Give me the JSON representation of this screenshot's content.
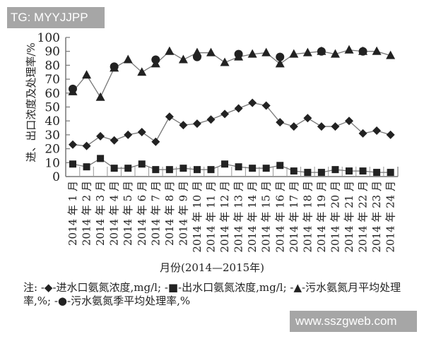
{
  "watermarks": {
    "top": "TG: MYYJJPP",
    "bottom": "www.sszgweb.com"
  },
  "chart_data": {
    "type": "line",
    "title": "",
    "xlabel": "月份(2014—2015年)",
    "ylabel": "进、出口浓度及处理率/%",
    "ylim": [
      0,
      100
    ],
    "yticks": [
      0,
      10,
      20,
      30,
      40,
      50,
      60,
      70,
      80,
      90,
      100
    ],
    "grid": false,
    "legend_position": "below (note)",
    "categories": [
      "2014年1月",
      "2014年2月",
      "2014年3月",
      "2014年4月",
      "2014年5月",
      "2014年6月",
      "2014年7月",
      "2014年8月",
      "2014年9月",
      "2014年10月",
      "2014年11月",
      "2014年12月",
      "2014年13月",
      "2014年14月",
      "2014年15月",
      "2014年16月",
      "2014年17月",
      "2014年18月",
      "2014年19月",
      "2014年20月",
      "2014年21月",
      "2014年22月",
      "2014年23月",
      "2014年24月"
    ],
    "series": [
      {
        "name": "进水口氨氮浓度,mg/l",
        "marker": "diamond",
        "values": [
          23,
          22,
          29,
          26,
          30,
          32,
          25,
          43,
          37,
          38,
          41,
          45,
          49,
          53,
          51,
          39,
          36,
          42,
          36,
          36,
          40,
          31,
          33,
          30
        ]
      },
      {
        "name": "出水口氨氮浓度,mg/l",
        "marker": "square",
        "values": [
          9,
          7,
          13,
          6,
          6,
          9,
          5,
          5,
          6,
          5,
          5,
          9,
          7,
          6,
          6,
          8,
          4,
          3,
          3,
          5,
          4,
          4,
          3,
          3
        ]
      },
      {
        "name": "污水氨氮月平均处理率,%",
        "marker": "triangle",
        "values": [
          61,
          73,
          57,
          78,
          84,
          75,
          81,
          90,
          84,
          89,
          89,
          82,
          86,
          88,
          89,
          81,
          88,
          89,
          90,
          88,
          91,
          90,
          90,
          87
        ]
      },
      {
        "name": "污水氨氮季平均处理率,%",
        "marker": "circle",
        "x_index": [
          0,
          3,
          6,
          9,
          12,
          15,
          18,
          21
        ],
        "values": [
          63,
          79,
          84,
          86,
          88,
          86,
          90,
          90
        ]
      }
    ]
  },
  "labels": {
    "xtitle": "月份(2014—2015年)",
    "ytitle": "进、出口浓度及处理率/%",
    "note_prefix": "注:",
    "legend": [
      "进水口氨氮浓度,mg/l;",
      "出水口氨氮浓度,mg/l;",
      "污水氨氮月平均处理率,%;",
      "污水氨氮季平均处理率,%"
    ]
  }
}
